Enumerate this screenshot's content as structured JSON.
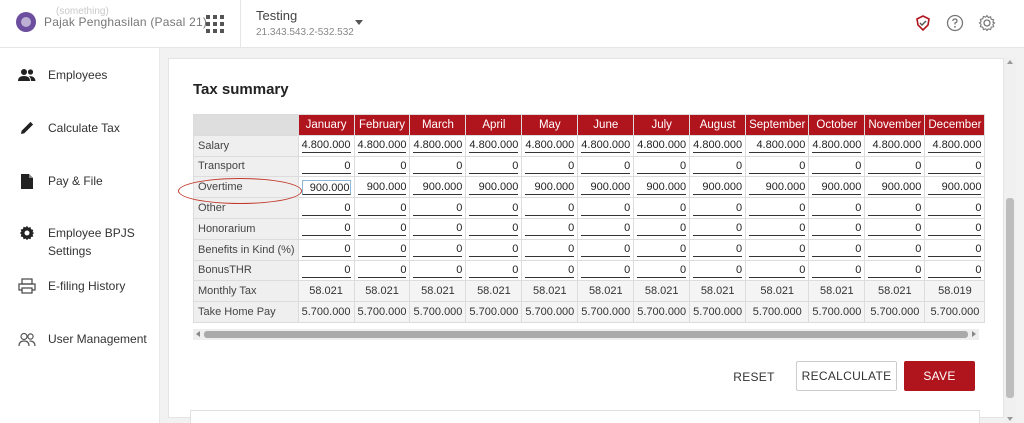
{
  "header": {
    "watermark": "(something)",
    "brand_text": "Pajak Penghasilan (Pasal 21)",
    "company_name": "Testing",
    "company_npwp": "21.343.543.2-532.532"
  },
  "icons": {
    "app_grid": "grid-icon",
    "notification": "shield-badge-icon",
    "help": "question-icon",
    "settings": "gear-icon"
  },
  "sidebar": {
    "items": [
      {
        "label": "Employees",
        "icon": "people-icon"
      },
      {
        "label": "Calculate Tax",
        "icon": "pencil-icon"
      },
      {
        "label": "Pay & File",
        "icon": "document-icon"
      },
      {
        "label": "Employee BPJS Settings",
        "icon": "gear-icon"
      },
      {
        "label": "E-filing History",
        "icon": "printer-icon"
      },
      {
        "label": "User Management",
        "icon": "users-icon"
      }
    ]
  },
  "main": {
    "title": "Tax summary",
    "months": [
      "January",
      "February",
      "March",
      "April",
      "May",
      "June",
      "July",
      "August",
      "September",
      "October",
      "November",
      "December"
    ],
    "rows": [
      {
        "label": "Salary",
        "type": "input",
        "values": [
          "4.800.000",
          "4.800.000",
          "4.800.000",
          "4.800.000",
          "4.800.000",
          "4.800.000",
          "4.800.000",
          "4.800.000",
          "4.800.000",
          "4.800.000",
          "4.800.000",
          "4.800.000"
        ]
      },
      {
        "label": "Transport",
        "type": "input",
        "values": [
          "0",
          "0",
          "0",
          "0",
          "0",
          "0",
          "0",
          "0",
          "0",
          "0",
          "0",
          "0"
        ]
      },
      {
        "label": "Overtime",
        "type": "input",
        "values": [
          "900.000",
          "900.000",
          "900.000",
          "900.000",
          "900.000",
          "900.000",
          "900.000",
          "900.000",
          "900.000",
          "900.000",
          "900.000",
          "900.000"
        ]
      },
      {
        "label": "Other",
        "type": "input",
        "values": [
          "0",
          "0",
          "0",
          "0",
          "0",
          "0",
          "0",
          "0",
          "0",
          "0",
          "0",
          "0"
        ]
      },
      {
        "label": "Honorarium",
        "type": "input",
        "values": [
          "0",
          "0",
          "0",
          "0",
          "0",
          "0",
          "0",
          "0",
          "0",
          "0",
          "0",
          "0"
        ]
      },
      {
        "label": "Benefits in Kind (%)",
        "type": "input",
        "values": [
          "0",
          "0",
          "0",
          "0",
          "0",
          "0",
          "0",
          "0",
          "0",
          "0",
          "0",
          "0"
        ]
      },
      {
        "label": "BonusTHR",
        "type": "input",
        "values": [
          "0",
          "0",
          "0",
          "0",
          "0",
          "0",
          "0",
          "0",
          "0",
          "0",
          "0",
          "0"
        ]
      },
      {
        "label": "Monthly Tax",
        "type": "calc",
        "values": [
          "58.021",
          "58.021",
          "58.021",
          "58.021",
          "58.021",
          "58.021",
          "58.021",
          "58.021",
          "58.021",
          "58.021",
          "58.021",
          "58.019"
        ]
      },
      {
        "label": "Take Home Pay",
        "type": "calc",
        "values": [
          "5.700.000",
          "5.700.000",
          "5.700.000",
          "5.700.000",
          "5.700.000",
          "5.700.000",
          "5.700.000",
          "5.700.000",
          "5.700.000",
          "5.700.000",
          "5.700.000",
          "5.700.000"
        ]
      }
    ],
    "buttons": {
      "reset": "RESET",
      "recalculate": "RECALCULATE",
      "save": "SAVE"
    }
  },
  "colors": {
    "accent": "#b0151e",
    "annotation": "#c0392b"
  }
}
